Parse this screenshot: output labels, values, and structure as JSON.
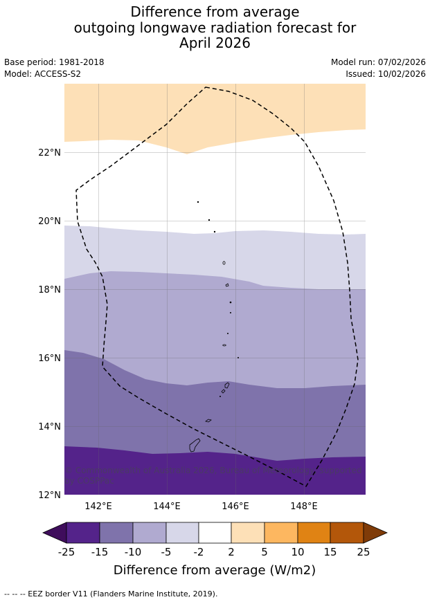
{
  "title": {
    "line1": "Difference from average",
    "line2": "outgoing longwave radiation forecast for",
    "line3": "April 2026"
  },
  "meta": {
    "base_period": "Base period: 1981-2018",
    "model": "Model: ACCESS-S2",
    "model_run": "Model run: 07/02/2026",
    "issued": "Issued: 10/02/2026"
  },
  "map": {
    "lat_labels": [
      "12°N",
      "14°N",
      "16°N",
      "18°N",
      "20°N",
      "22°N"
    ],
    "lon_labels": [
      "142°E",
      "144°E",
      "146°E",
      "148°E"
    ],
    "copyright": "© Commonwealth of Australia 2026, Bureau of Meteorology, supported by COSPPac"
  },
  "colorbar": {
    "label": "Difference from average (W/m2)",
    "ticks": [
      "-25",
      "-15",
      "-10",
      "-5",
      "-2",
      "2",
      "5",
      "10",
      "15",
      "25"
    ],
    "colors": {
      "min_extend": "#3f0d5c",
      "b1": "#54238a",
      "b2": "#7f73ab",
      "b3": "#b0aad0",
      "b4": "#d7d7e9",
      "b5": "#ffffff",
      "b6": "#fde0b7",
      "b7": "#fdb760",
      "b8": "#e08314",
      "b9": "#b3570a",
      "max_extend": "#7f3b08"
    }
  },
  "legend": {
    "eez_line": "--  --  -- EEZ border V11 (Flanders Marine Institute, 2019)."
  }
}
